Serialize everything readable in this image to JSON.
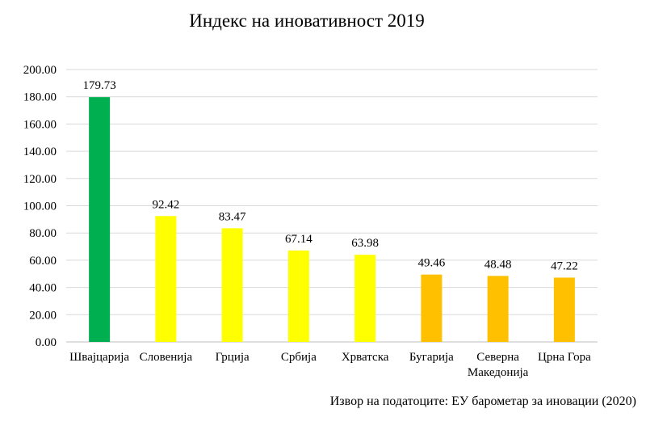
{
  "chart_data": {
    "type": "bar",
    "title": "Индекс на иновативност 2019",
    "categories": [
      [
        "Швајцарија"
      ],
      [
        "Словенија"
      ],
      [
        "Грција"
      ],
      [
        "Србија"
      ],
      [
        "Хрватска"
      ],
      [
        "Бугарија"
      ],
      [
        "Северна",
        "Македонија"
      ],
      [
        "Црна Гора"
      ]
    ],
    "values": [
      179.73,
      92.42,
      83.47,
      67.14,
      63.98,
      49.46,
      48.48,
      47.22
    ],
    "value_labels": [
      "179.73",
      "92.42",
      "83.47",
      "67.14",
      "63.98",
      "49.46",
      "48.48",
      "47.22"
    ],
    "bar_colors": [
      "#00b050",
      "#ffff00",
      "#ffff00",
      "#ffff00",
      "#ffff00",
      "#ffc000",
      "#ffc000",
      "#ffc000"
    ],
    "ylim": [
      0,
      200
    ],
    "yticks": [
      "0.00",
      "20.00",
      "40.00",
      "60.00",
      "80.00",
      "100.00",
      "120.00",
      "140.00",
      "160.00",
      "180.00",
      "200.00"
    ],
    "grid": true,
    "gridline_color": "#d9d9d9",
    "xlabel": "",
    "ylabel": ""
  },
  "source_note": "Извор на податоците: ЕУ барометар за иновации (2020)"
}
